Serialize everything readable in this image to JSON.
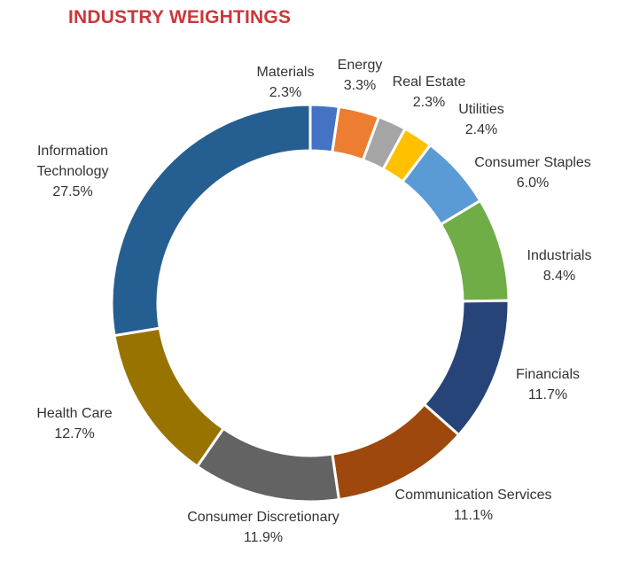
{
  "chart_data": {
    "type": "pie",
    "subtype": "donut",
    "title": "INDUSTRY WEIGHTINGS",
    "title_color": "#c9383c",
    "categories": [
      "Materials",
      "Energy",
      "Real Estate",
      "Utilities",
      "Consumer Staples",
      "Industrials",
      "Financials",
      "Communication Services",
      "Consumer Discretionary",
      "Health Care",
      "Information Technology"
    ],
    "values": [
      2.3,
      3.3,
      2.3,
      2.4,
      6.0,
      8.4,
      11.7,
      11.1,
      11.9,
      12.7,
      27.5
    ],
    "value_labels": [
      "2.3%",
      "3.3%",
      "2.3%",
      "2.4%",
      "6.0%",
      "8.4%",
      "11.7%",
      "11.1%",
      "11.9%",
      "12.7%",
      "27.5%"
    ],
    "colors": [
      "#4472c4",
      "#ed7d31",
      "#a5a5a5",
      "#ffc000",
      "#5b9bd5",
      "#70ad47",
      "#264478",
      "#9e480e",
      "#636363",
      "#997300",
      "#255e91"
    ],
    "direction": "clockwise",
    "start": "top",
    "legend": "none",
    "data_labels": "outside"
  }
}
